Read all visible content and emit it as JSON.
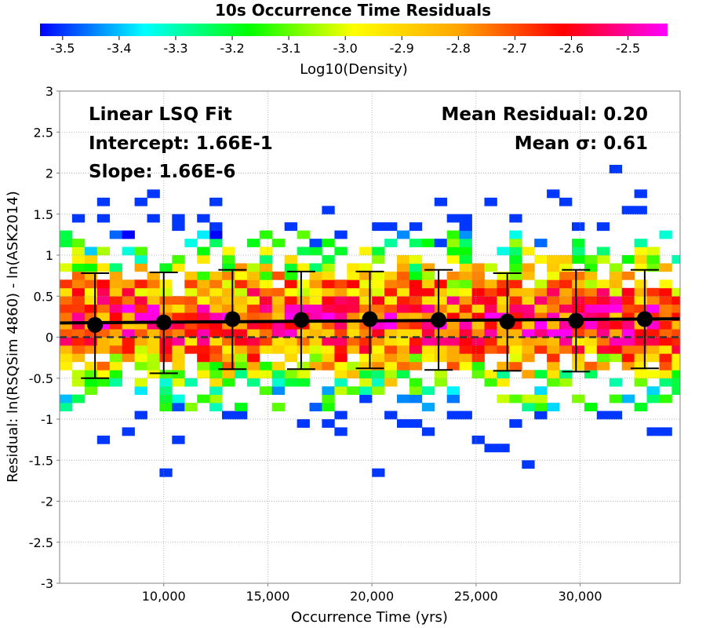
{
  "chart_data": {
    "type": "heatmap",
    "title": "10s Occurrence Time Residuals",
    "xlabel": "Occurrence Time (yrs)",
    "ylabel": "Residual: ln(RSQSim 4860) - ln(ASK2014)",
    "xlim": [
      5000,
      34800
    ],
    "ylim": [
      -3,
      3
    ],
    "x_ticks": [
      10000,
      15000,
      20000,
      25000,
      30000
    ],
    "x_tick_labels": [
      "10,000",
      "15,000",
      "20,000",
      "25,000",
      "30,000"
    ],
    "y_ticks": [
      -3,
      -2.5,
      -2,
      -1.5,
      -1,
      -0.5,
      0,
      0.5,
      1,
      1.5,
      2,
      2.5,
      3
    ],
    "y_tick_labels": [
      "-3",
      "-2.5",
      "-2",
      "-1.5",
      "-1",
      "-0.5",
      "0",
      "0.5",
      "1",
      "1.5",
      "2",
      "2.5",
      "3"
    ],
    "grid": true,
    "colorbar": {
      "label": "Log10(Density)",
      "range": [
        -3.54,
        -2.43
      ],
      "ticks": [
        -3.5,
        -3.4,
        -3.3,
        -3.2,
        -3.1,
        -3.0,
        -2.9,
        -2.8,
        -2.7,
        -2.6,
        -2.5
      ],
      "tick_labels": [
        "-3.5",
        "-3.4",
        "-3.3",
        "-3.2",
        "-3.1",
        "-3.0",
        "-2.9",
        "-2.8",
        "-2.7",
        "-2.6",
        "-2.5"
      ],
      "colors": [
        "#0000ff",
        "#00ffff",
        "#00ff00",
        "#ffff00",
        "#ffa500",
        "#ff0000",
        "#ff00ff"
      ]
    },
    "density_bins": {
      "x_bin_width": 600,
      "y_bin_width": 0.1,
      "note_value_scale": "log10 density"
    },
    "binned_means": {
      "x": [
        6700,
        10000,
        13300,
        16600,
        19900,
        23200,
        26500,
        29800,
        33100
      ],
      "y": [
        0.15,
        0.18,
        0.22,
        0.21,
        0.22,
        0.21,
        0.19,
        0.2,
        0.22
      ],
      "err_low": [
        -0.5,
        -0.44,
        -0.39,
        -0.39,
        -0.38,
        -0.4,
        -0.41,
        -0.42,
        -0.38
      ],
      "err_high": [
        0.78,
        0.79,
        0.82,
        0.8,
        0.8,
        0.82,
        0.78,
        0.82,
        0.82
      ]
    },
    "fit_line": {
      "x": [
        5000,
        34800
      ],
      "y": [
        0.174,
        0.224
      ]
    },
    "reference_line": {
      "y": 0,
      "style": "dashed"
    },
    "annotations": {
      "fit_title": "Linear LSQ Fit",
      "intercept": "Intercept: 1.66E-1",
      "slope": "Slope: 1.66E-6",
      "mean_residual": "Mean Residual: 0.20",
      "mean_sigma": "Mean σ: 0.61"
    }
  }
}
